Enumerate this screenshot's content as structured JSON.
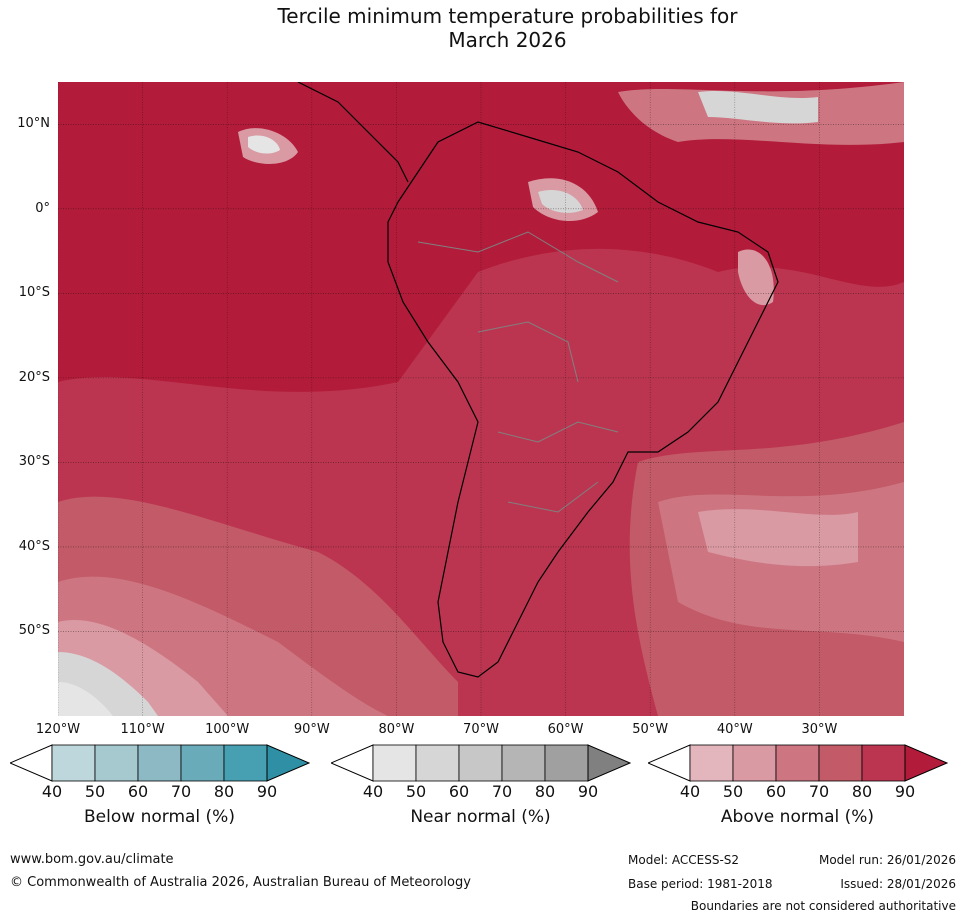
{
  "title_line1": "Tercile minimum temperature probabilities for",
  "title_line2": "March 2026",
  "lat_labels": [
    "10°N",
    "0°",
    "10°S",
    "20°S",
    "30°S",
    "40°S",
    "50°S"
  ],
  "lat_values": [
    10,
    0,
    -10,
    -20,
    -30,
    -40,
    -50
  ],
  "lon_labels": [
    "120°W",
    "110°W",
    "100°W",
    "90°W",
    "80°W",
    "70°W",
    "60°W",
    "50°W",
    "40°W",
    "30°W"
  ],
  "lon_values": [
    -120,
    -110,
    -100,
    -90,
    -80,
    -70,
    -60,
    -50,
    -40,
    -30
  ],
  "map_extent": {
    "lon_min": -120,
    "lon_max": -20,
    "lat_min": -60,
    "lat_max": 15
  },
  "colorbars": [
    {
      "title": "Below normal (%)",
      "ticks": [
        "40",
        "50",
        "60",
        "70",
        "80",
        "90"
      ],
      "colors": [
        "#ffffff",
        "#bdd7dd",
        "#a5c9cf",
        "#8cb9c4",
        "#6aabb9",
        "#47a0b2",
        "#2e8fa5"
      ]
    },
    {
      "title": "Near normal (%)",
      "ticks": [
        "40",
        "50",
        "60",
        "70",
        "80",
        "90"
      ],
      "colors": [
        "#ffffff",
        "#e5e5e5",
        "#d6d6d6",
        "#c7c7c7",
        "#b5b5b5",
        "#a0a0a0",
        "#808080"
      ]
    },
    {
      "title": "Above normal (%)",
      "ticks": [
        "40",
        "50",
        "60",
        "70",
        "80",
        "90"
      ],
      "colors": [
        "#ffffff",
        "#e2b6bc",
        "#d99aa3",
        "#cd7682",
        "#c35a68",
        "#bb3550",
        "#b21c3a"
      ]
    }
  ],
  "map_colors": {
    "above90": "#b21c3a",
    "above80": "#bb3550",
    "above70": "#c35a68",
    "above60": "#cd7682",
    "above50": "#d99aa3",
    "near50": "#d6d6d6",
    "near60": "#c7c7c7",
    "near40": "#e5e5e5"
  },
  "footer": {
    "website": "www.bom.gov.au/climate",
    "copyright": "© Commonwealth of Australia 2026, Australian Bureau of Meteorology",
    "model": "Model: ACCESS-S2",
    "base_period": "Base period: 1981-2018",
    "model_run": "Model run: 26/01/2026",
    "issued": "Issued: 28/01/2026",
    "disclaimer": "Boundaries are not considered authoritative"
  }
}
